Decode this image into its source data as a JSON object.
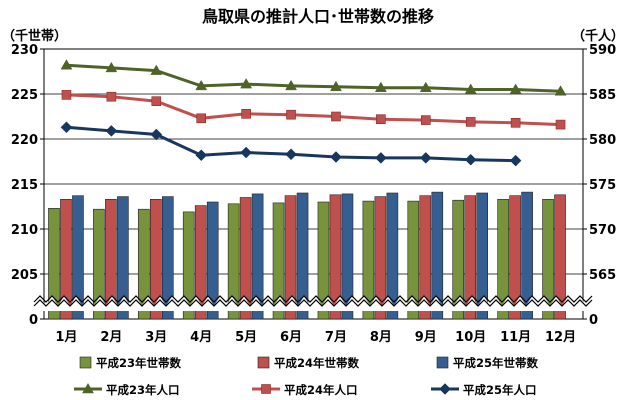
{
  "chart_data": {
    "type": "bar",
    "title": "鳥取県の推計人口･世帯数の推移",
    "left_unit": "（千世帯）",
    "right_unit": "（千人）",
    "categories": [
      "1月",
      "2月",
      "3月",
      "4月",
      "5月",
      "6月",
      "7月",
      "8月",
      "9月",
      "10月",
      "11月",
      "12月"
    ],
    "left_axis": {
      "ticks": [
        "230",
        "225",
        "220",
        "215",
        "210",
        "205",
        "0"
      ],
      "values": [
        230,
        225,
        220,
        215,
        210,
        205,
        0
      ],
      "ylim": [
        200,
        230
      ],
      "broken": true
    },
    "right_axis": {
      "ticks": [
        "590",
        "585",
        "580",
        "575",
        "570",
        "565",
        "0"
      ],
      "values": [
        590,
        585,
        580,
        575,
        570,
        565,
        0
      ],
      "ylim": [
        560,
        590
      ],
      "broken": true
    },
    "bar_series": [
      {
        "name": "平成23年世帯数",
        "color": "#77933c",
        "axis": "left",
        "values": [
          212.3,
          212.2,
          212.2,
          211.9,
          212.8,
          212.9,
          213.0,
          213.1,
          213.1,
          213.2,
          213.3,
          213.3
        ]
      },
      {
        "name": "平成24年世帯数",
        "color": "#c0504d",
        "axis": "left",
        "values": [
          213.3,
          213.3,
          213.3,
          212.6,
          213.5,
          213.7,
          213.8,
          213.6,
          213.7,
          213.7,
          213.7,
          213.8
        ]
      },
      {
        "name": "平成25年世帯数",
        "color": "#365f91",
        "axis": "left",
        "values": [
          213.7,
          213.6,
          213.6,
          213.0,
          213.9,
          214.0,
          213.9,
          214.0,
          214.1,
          214.0,
          214.1,
          null
        ]
      }
    ],
    "line_series": [
      {
        "name": "平成23年人口",
        "color": "#4f6228",
        "marker": "triangle",
        "axis": "right",
        "values": [
          588.2,
          587.9,
          587.6,
          585.9,
          586.1,
          585.9,
          585.8,
          585.7,
          585.7,
          585.5,
          585.5,
          585.3
        ]
      },
      {
        "name": "平成24年人口",
        "color": "#c0504d",
        "marker": "square",
        "axis": "right",
        "values": [
          584.9,
          584.7,
          584.2,
          582.3,
          582.8,
          582.7,
          582.5,
          582.2,
          582.1,
          581.9,
          581.8,
          581.6
        ]
      },
      {
        "name": "平成25年人口",
        "color": "#17375e",
        "marker": "diamond",
        "axis": "right",
        "values": [
          581.3,
          580.9,
          580.5,
          578.2,
          578.5,
          578.3,
          578.0,
          577.9,
          577.9,
          577.7,
          577.6,
          null
        ]
      }
    ],
    "legend_position": "bottom",
    "grid": true
  }
}
